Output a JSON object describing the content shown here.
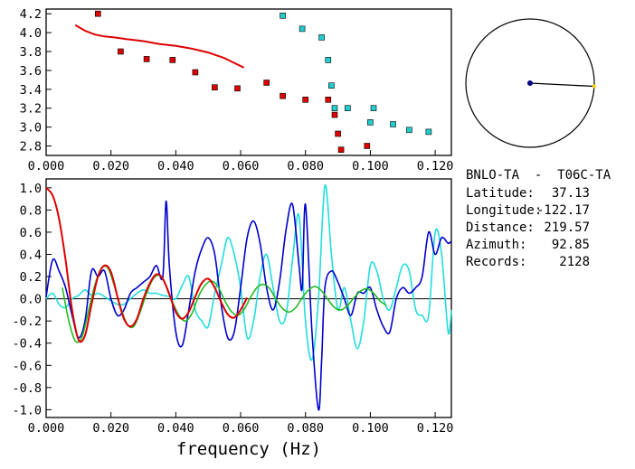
{
  "colors": {
    "velocity_fit": "#dd0000",
    "red_points": "#dd0000",
    "cyan_points": "#22cccc",
    "corr_blue": "#0000cc",
    "corr_cyan": "#22dddd",
    "bessel_red": "#dd0000",
    "bessel_green": "#22bb22",
    "station_dot": "#000080",
    "station_dot2": "#ffcc00"
  },
  "station_info": {
    "title": "BNLO-TA  -  T06C-TA",
    "lines": [
      {
        "label": "Latitude:",
        "value": "37.13"
      },
      {
        "label": "Longitude:",
        "value": "-122.17"
      },
      {
        "label": "Distance:",
        "value": "219.57"
      },
      {
        "label": "Azimuth:",
        "value": "92.85"
      },
      {
        "label": "Records:",
        "value": "2128"
      }
    ]
  },
  "azimuth_deg": 92.85,
  "chart_data": [
    {
      "type": "scatter",
      "xlim": [
        0.0,
        0.125
      ],
      "ylim": [
        2.7,
        4.25
      ],
      "x_ticks": [
        "0.000",
        "0.020",
        "0.040",
        "0.060",
        "0.080",
        "0.100",
        "0.120"
      ],
      "y_ticks": [
        "2.8",
        "3.0",
        "3.2",
        "3.4",
        "3.6",
        "3.8",
        "4.0",
        "4.2"
      ],
      "series": [
        {
          "kind": "line",
          "x": [
            0.009,
            0.012,
            0.015,
            0.018,
            0.021,
            0.025,
            0.03,
            0.035,
            0.04,
            0.045,
            0.05,
            0.055,
            0.058,
            0.061
          ],
          "y": [
            4.08,
            4.02,
            3.98,
            3.96,
            3.95,
            3.93,
            3.91,
            3.88,
            3.86,
            3.83,
            3.79,
            3.73,
            3.68,
            3.63
          ]
        },
        {
          "kind": "points-red",
          "x": [
            0.016,
            0.023,
            0.031,
            0.039,
            0.046,
            0.052,
            0.059,
            0.068,
            0.073,
            0.08,
            0.087,
            0.089,
            0.09,
            0.091,
            0.099
          ],
          "y": [
            4.2,
            3.8,
            3.72,
            3.71,
            3.58,
            3.42,
            3.41,
            3.47,
            3.33,
            3.29,
            3.29,
            3.13,
            2.93,
            2.76,
            2.8
          ]
        },
        {
          "kind": "points-cyan",
          "x": [
            0.073,
            0.079,
            0.085,
            0.087,
            0.088,
            0.089,
            0.093,
            0.1,
            0.101,
            0.107,
            0.112,
            0.118
          ],
          "y": [
            4.18,
            4.04,
            3.95,
            3.71,
            3.44,
            3.2,
            3.2,
            3.05,
            3.2,
            3.03,
            2.97,
            2.95
          ]
        }
      ]
    },
    {
      "type": "line",
      "xlabel": "frequency (Hz)",
      "xlim": [
        0.0,
        0.125
      ],
      "ylim": [
        -1.07,
        1.08
      ],
      "x_ticks": [
        "0.000",
        "0.020",
        "0.040",
        "0.060",
        "0.080",
        "0.100",
        "0.120"
      ],
      "y_ticks": [
        "1.0",
        "0.8",
        "0.6",
        "0.4",
        "0.2",
        "0.0",
        "-0.2",
        "-0.4",
        "-0.6",
        "-0.8",
        "-1.0"
      ],
      "series": [
        {
          "kind": "corr-blue",
          "x": [
            0.0,
            0.002,
            0.004,
            0.006,
            0.008,
            0.01,
            0.012,
            0.014,
            0.016,
            0.018,
            0.02,
            0.022,
            0.024,
            0.026,
            0.028,
            0.03,
            0.032,
            0.034,
            0.036,
            0.037,
            0.038,
            0.04,
            0.042,
            0.044,
            0.046,
            0.048,
            0.05,
            0.052,
            0.054,
            0.056,
            0.058,
            0.06,
            0.062,
            0.064,
            0.066,
            0.068,
            0.07,
            0.072,
            0.074,
            0.076,
            0.078,
            0.079,
            0.08,
            0.082,
            0.084,
            0.085,
            0.086,
            0.088,
            0.09,
            0.092,
            0.094,
            0.096,
            0.098,
            0.1,
            0.102,
            0.104,
            0.106,
            0.108,
            0.11,
            0.112,
            0.114,
            0.116,
            0.118,
            0.12,
            0.122,
            0.124,
            0.125
          ],
          "y": [
            0.02,
            0.35,
            0.25,
            0.1,
            -0.15,
            -0.35,
            -0.2,
            0.25,
            0.2,
            0.25,
            0.0,
            -0.15,
            -0.1,
            0.05,
            0.1,
            0.15,
            0.2,
            0.3,
            0.2,
            0.88,
            0.3,
            -0.3,
            -0.42,
            -0.1,
            0.25,
            0.45,
            0.55,
            0.4,
            -0.05,
            -0.35,
            -0.3,
            0.1,
            0.55,
            0.7,
            0.5,
            0.1,
            -0.1,
            0.15,
            0.62,
            0.85,
            0.3,
            0.1,
            0.85,
            -0.3,
            -1.0,
            -0.55,
            0.1,
            0.25,
            0.15,
            0.0,
            -0.15,
            0.05,
            0.05,
            0.1,
            -0.1,
            -0.25,
            -0.3,
            0.0,
            0.1,
            0.05,
            0.1,
            0.2,
            0.6,
            0.4,
            0.55,
            0.5,
            0.52
          ]
        },
        {
          "kind": "corr-cyan",
          "x": [
            0.0,
            0.002,
            0.004,
            0.006,
            0.008,
            0.01,
            0.012,
            0.014,
            0.016,
            0.018,
            0.02,
            0.022,
            0.024,
            0.026,
            0.028,
            0.03,
            0.032,
            0.034,
            0.036,
            0.038,
            0.04,
            0.042,
            0.044,
            0.046,
            0.048,
            0.05,
            0.052,
            0.054,
            0.056,
            0.058,
            0.06,
            0.062,
            0.064,
            0.066,
            0.068,
            0.07,
            0.072,
            0.074,
            0.076,
            0.078,
            0.08,
            0.082,
            0.084,
            0.086,
            0.088,
            0.09,
            0.092,
            0.094,
            0.096,
            0.098,
            0.1,
            0.102,
            0.104,
            0.106,
            0.108,
            0.11,
            0.112,
            0.114,
            0.116,
            0.118,
            0.12,
            0.122,
            0.124,
            0.125
          ],
          "y": [
            0.0,
            0.05,
            -0.05,
            -0.08,
            0.0,
            0.03,
            0.08,
            0.03,
            0.05,
            0.02,
            -0.02,
            -0.05,
            -0.05,
            0.0,
            0.05,
            0.08,
            0.05,
            0.05,
            0.03,
            0.02,
            0.0,
            0.12,
            0.2,
            -0.1,
            -0.2,
            -0.25,
            0.05,
            0.3,
            0.55,
            0.4,
            0.1,
            -0.35,
            -0.2,
            0.2,
            0.4,
            0.1,
            -0.2,
            -0.15,
            0.35,
            0.75,
            -0.2,
            -0.55,
            0.0,
            1.02,
            0.4,
            -0.1,
            0.1,
            -0.2,
            -0.45,
            -0.2,
            0.3,
            0.25,
            0.0,
            -0.1,
            0.1,
            0.3,
            0.25,
            -0.1,
            -0.15,
            -0.15,
            0.6,
            0.4,
            -0.3,
            -0.1
          ]
        },
        {
          "kind": "bessel-red",
          "x": [
            0.0,
            0.002,
            0.004,
            0.006,
            0.008,
            0.01,
            0.012,
            0.014,
            0.016,
            0.018,
            0.02,
            0.022,
            0.024,
            0.026,
            0.028,
            0.03,
            0.032,
            0.034,
            0.036,
            0.038,
            0.04,
            0.042,
            0.044,
            0.046,
            0.048,
            0.05,
            0.052,
            0.054,
            0.056,
            0.058,
            0.06,
            0.062
          ],
          "y": [
            1.0,
            0.93,
            0.72,
            0.35,
            -0.1,
            -0.37,
            -0.33,
            -0.05,
            0.2,
            0.3,
            0.24,
            0.02,
            -0.18,
            -0.25,
            -0.18,
            0.0,
            0.14,
            0.22,
            0.18,
            0.04,
            -0.12,
            -0.18,
            -0.12,
            0.02,
            0.14,
            0.18,
            0.1,
            -0.03,
            -0.14,
            -0.17,
            -0.1,
            0.01
          ]
        },
        {
          "kind": "bessel-green",
          "x": [
            0.005,
            0.007,
            0.009,
            0.011,
            0.013,
            0.015,
            0.017,
            0.019,
            0.021,
            0.023,
            0.025,
            0.027,
            0.029,
            0.031,
            0.033,
            0.035,
            0.037,
            0.039,
            0.041,
            0.043,
            0.045,
            0.047,
            0.049,
            0.051,
            0.053,
            0.055,
            0.057,
            0.059,
            0.061,
            0.063,
            0.065,
            0.067,
            0.069,
            0.071,
            0.073,
            0.075,
            0.077,
            0.079,
            0.081,
            0.083,
            0.085,
            0.087,
            0.089,
            0.091,
            0.093,
            0.095,
            0.097,
            0.099,
            0.101,
            0.103,
            0.105
          ],
          "y": [
            0.1,
            -0.2,
            -0.38,
            -0.35,
            -0.12,
            0.12,
            0.27,
            0.28,
            0.12,
            -0.08,
            -0.23,
            -0.25,
            -0.12,
            0.05,
            0.18,
            0.21,
            0.12,
            -0.03,
            -0.15,
            -0.2,
            -0.13,
            0.02,
            0.12,
            0.16,
            0.11,
            -0.01,
            -0.11,
            -0.15,
            -0.1,
            0.01,
            0.1,
            0.13,
            0.09,
            -0.01,
            -0.09,
            -0.12,
            -0.08,
            0.01,
            0.08,
            0.11,
            0.07,
            -0.01,
            -0.08,
            -0.1,
            -0.06,
            0.01,
            0.07,
            0.09,
            0.05,
            -0.02,
            -0.06
          ]
        }
      ]
    }
  ]
}
